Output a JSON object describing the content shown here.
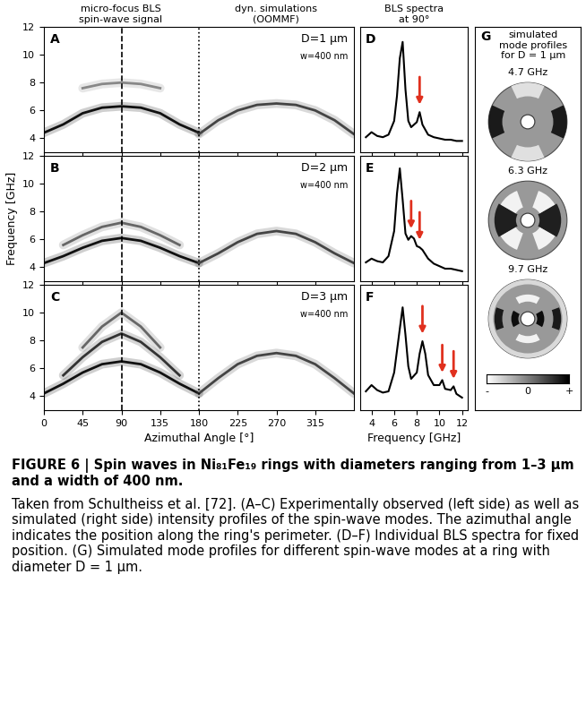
{
  "headers": [
    "micro-focus BLS\nspin-wave signal",
    "dyn. simulations\n(OOMMF)",
    "BLS spectra\nat 90°"
  ],
  "chart_data": [
    {
      "type": "line",
      "panel": "A",
      "annotations": [
        "D=1 μm",
        "w=400 nm"
      ],
      "xlim": [
        0,
        360
      ],
      "xticks": [
        0,
        45,
        90,
        135,
        180,
        225,
        270,
        315
      ],
      "ylim": [
        3,
        12
      ],
      "yticks": [
        4,
        6,
        8,
        10,
        12
      ],
      "tick_labels": "y",
      "dashed_line_x": 90,
      "dotted_line_x": 180,
      "series": [
        {
          "color": "#111111",
          "line_style": "solid",
          "x": [
            0,
            22.5,
            45,
            67.5,
            90,
            112.5,
            135,
            157.5,
            180
          ],
          "values": [
            4.4,
            5.0,
            5.8,
            6.2,
            6.3,
            6.2,
            5.8,
            5.0,
            4.4
          ]
        },
        {
          "color": "#888888",
          "line_style": "solid",
          "x": [
            45,
            67.5,
            90,
            112.5,
            135
          ],
          "values": [
            7.6,
            7.9,
            8.0,
            7.9,
            7.6
          ]
        },
        {
          "color": "#444444",
          "line_style": "solid",
          "x": [
            180,
            202.5,
            225,
            247.5,
            270,
            292.5,
            315,
            337.5,
            360
          ],
          "values": [
            4.3,
            5.3,
            6.0,
            6.4,
            6.5,
            6.4,
            6.0,
            5.3,
            4.3
          ]
        }
      ]
    },
    {
      "type": "line",
      "panel": "B",
      "annotations": [
        "D=2 μm",
        "w=400 nm"
      ],
      "ylabel": "Frequency [GHz]",
      "xlim": [
        0,
        360
      ],
      "xticks": [
        0,
        45,
        90,
        135,
        180,
        225,
        270,
        315
      ],
      "ylim": [
        3,
        12
      ],
      "yticks": [
        4,
        6,
        8,
        10,
        12
      ],
      "tick_labels": "y",
      "dashed_line_x": 90,
      "dotted_line_x": 180,
      "series": [
        {
          "color": "#111111",
          "line_style": "solid",
          "x": [
            0,
            22.5,
            45,
            67.5,
            90,
            112.5,
            135,
            157.5,
            180
          ],
          "values": [
            4.3,
            4.8,
            5.4,
            5.9,
            6.1,
            5.9,
            5.4,
            4.8,
            4.3
          ]
        },
        {
          "color": "#666666",
          "line_style": "solid",
          "x": [
            22.5,
            45,
            67.5,
            90,
            112.5,
            135,
            157.5
          ],
          "values": [
            5.6,
            6.3,
            6.9,
            7.2,
            6.9,
            6.3,
            5.6
          ]
        },
        {
          "color": "#444444",
          "line_style": "solid",
          "x": [
            180,
            202.5,
            225,
            247.5,
            270,
            292.5,
            315,
            337.5,
            360
          ],
          "values": [
            4.3,
            5.0,
            5.8,
            6.4,
            6.6,
            6.4,
            5.8,
            5.0,
            4.3
          ]
        }
      ]
    },
    {
      "type": "line",
      "panel": "C",
      "annotations": [
        "D=3 μm",
        "w=400 nm"
      ],
      "xlabel": "Azimuthal Angle [°]",
      "xlim": [
        0,
        360
      ],
      "xticks": [
        0,
        45,
        90,
        135,
        180,
        225,
        270,
        315
      ],
      "ylim": [
        3,
        12
      ],
      "yticks": [
        4,
        6,
        8,
        10,
        12
      ],
      "tick_labels": true,
      "dashed_line_x": 90,
      "dotted_line_x": 180,
      "series": [
        {
          "color": "#111111",
          "line_style": "solid",
          "x": [
            0,
            22.5,
            45,
            67.5,
            90,
            112.5,
            135,
            157.5,
            180
          ],
          "values": [
            4.2,
            4.9,
            5.7,
            6.3,
            6.5,
            6.3,
            5.7,
            4.9,
            4.2
          ]
        },
        {
          "color": "#333333",
          "line_style": "solid",
          "x": [
            22.5,
            45,
            67.5,
            90,
            112.5,
            135,
            157.5
          ],
          "values": [
            5.5,
            6.8,
            7.9,
            8.5,
            7.9,
            6.8,
            5.5
          ]
        },
        {
          "color": "#666666",
          "line_style": "solid",
          "x": [
            45,
            67.5,
            90,
            112.5,
            135
          ],
          "values": [
            7.5,
            9.0,
            10.0,
            9.0,
            7.5
          ]
        },
        {
          "color": "#444444",
          "line_style": "solid",
          "x": [
            180,
            202.5,
            225,
            247.5,
            270,
            292.5,
            315,
            337.5,
            360
          ],
          "values": [
            4.2,
            5.3,
            6.3,
            6.9,
            7.1,
            6.9,
            6.3,
            5.3,
            4.2
          ]
        }
      ]
    },
    {
      "type": "line",
      "panel": "D",
      "xlim": [
        3,
        12.5
      ],
      "xticks": [
        4,
        6,
        8,
        10,
        12
      ],
      "ylim": [
        0,
        1
      ],
      "tick_labels": false,
      "arrows": [
        8.25
      ],
      "arrow_color": "#e0301e",
      "series": [
        {
          "color": "#000000",
          "line_style": "solid",
          "x": [
            3.5,
            4,
            4.5,
            5,
            5.5,
            6,
            6.25,
            6.5,
            6.75,
            7,
            7.25,
            7.5,
            8,
            8.25,
            8.5,
            9,
            9.5,
            10,
            10.5,
            11,
            11.5,
            12
          ],
          "values": [
            0.12,
            0.16,
            0.13,
            0.12,
            0.14,
            0.25,
            0.45,
            0.75,
            0.88,
            0.5,
            0.25,
            0.2,
            0.24,
            0.32,
            0.22,
            0.14,
            0.12,
            0.11,
            0.1,
            0.1,
            0.09,
            0.09
          ]
        }
      ]
    },
    {
      "type": "line",
      "panel": "E",
      "xlim": [
        3,
        12.5
      ],
      "xticks": [
        4,
        6,
        8,
        10,
        12
      ],
      "ylim": [
        0,
        1
      ],
      "tick_labels": false,
      "arrows": [
        7.5,
        8.25
      ],
      "arrow_color": "#e0301e",
      "series": [
        {
          "color": "#000000",
          "line_style": "solid",
          "x": [
            3.5,
            4,
            4.5,
            5,
            5.5,
            6,
            6.25,
            6.5,
            6.75,
            7,
            7.25,
            7.5,
            7.75,
            8,
            8.25,
            8.5,
            9,
            9.5,
            10,
            10.5,
            11,
            11.5,
            12
          ],
          "values": [
            0.15,
            0.18,
            0.16,
            0.15,
            0.2,
            0.4,
            0.7,
            0.9,
            0.65,
            0.38,
            0.33,
            0.36,
            0.34,
            0.28,
            0.27,
            0.25,
            0.18,
            0.14,
            0.12,
            0.1,
            0.1,
            0.09,
            0.08
          ]
        }
      ]
    },
    {
      "type": "line",
      "panel": "F",
      "xlabel": "Frequency [GHz]",
      "xlim": [
        3,
        12.5
      ],
      "xticks": [
        4,
        6,
        8,
        10,
        12
      ],
      "ylim": [
        0,
        1
      ],
      "tick_labels": "x",
      "arrows": [
        8.5,
        10.25,
        11.25
      ],
      "arrow_color": "#e0301e",
      "series": [
        {
          "color": "#000000",
          "line_style": "solid",
          "x": [
            3.5,
            4,
            4.5,
            5,
            5.5,
            6,
            6.5,
            6.75,
            7,
            7.25,
            7.5,
            8,
            8.25,
            8.5,
            8.75,
            9,
            9.5,
            10,
            10.25,
            10.5,
            11,
            11.25,
            11.5,
            12
          ],
          "values": [
            0.15,
            0.2,
            0.16,
            0.14,
            0.15,
            0.3,
            0.65,
            0.82,
            0.6,
            0.35,
            0.25,
            0.3,
            0.45,
            0.55,
            0.45,
            0.28,
            0.2,
            0.2,
            0.24,
            0.17,
            0.16,
            0.19,
            0.13,
            0.1
          ]
        }
      ]
    }
  ],
  "mode_profiles": {
    "panel": "G",
    "header": "simulated\nmode profiles\nfor D = 1 μm",
    "modes": [
      "4.7 GHz",
      "6.3 GHz",
      "9.7 GHz"
    ],
    "colorbar_labels": [
      "-",
      "0",
      "+"
    ]
  },
  "caption": {
    "title": "FIGURE 6 | Spin waves in Ni₈₁Fe₁₉ rings with diameters ranging from 1–3 μm and a width of 400 nm.",
    "text": "Taken from Schultheiss et al. [72]. (A–C) Experimentally observed (left side) as well as simulated (right side) intensity profiles of the spin-wave modes. The azimuthal angle indicates the position along the ring's perimeter. (D–F) Individual BLS spectra for fixed position. (G) Simulated mode profiles for different spin-wave modes at a ring with diameter D = 1 μm."
  }
}
